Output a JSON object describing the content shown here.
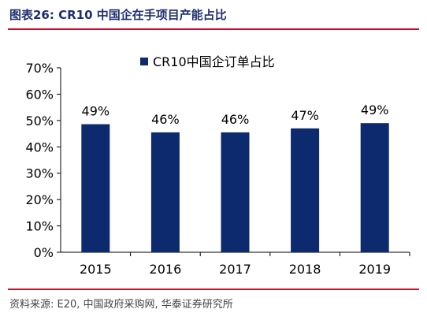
{
  "figure": {
    "title": "图表26:  CR10 中国企在手项目产能占比",
    "source": "资料来源: E20, 中国政府采购网, 华泰证券研究所"
  },
  "colors": {
    "bar": "#0d2a6e",
    "accent_rule": "#c8102e",
    "text": "#000000"
  },
  "chart_data": {
    "type": "bar",
    "categories": [
      "2015",
      "2016",
      "2017",
      "2018",
      "2019"
    ],
    "series": [
      {
        "name": "CR10中国企订单占比",
        "values": [
          0.49,
          0.46,
          0.46,
          0.47,
          0.49
        ]
      }
    ],
    "data_labels": [
      "49%",
      "46%",
      "46%",
      "47%",
      "49%"
    ],
    "plotted_values": [
      0.486,
      0.455,
      0.455,
      0.47,
      0.49
    ],
    "ylim": [
      0,
      0.7
    ],
    "yticks": [
      0,
      0.1,
      0.2,
      0.3,
      0.4,
      0.5,
      0.6,
      0.7
    ],
    "ytick_labels": [
      "0%",
      "10%",
      "20%",
      "30%",
      "40%",
      "50%",
      "60%",
      "70%"
    ],
    "legend_position": "top-center",
    "grid": false
  }
}
